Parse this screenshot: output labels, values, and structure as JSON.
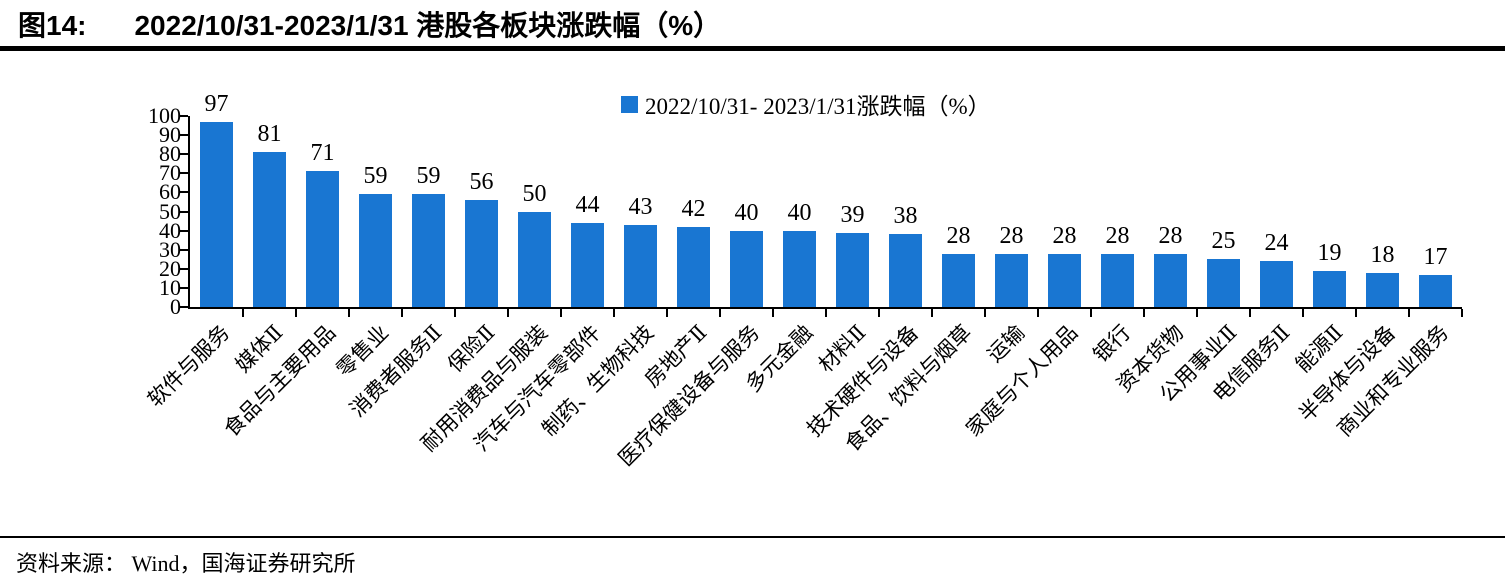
{
  "header": {
    "tag": "图14:",
    "title": "2022/10/31-2023/1/31 港股各板块涨跌幅（%）"
  },
  "legend": {
    "label": "2022/10/31- 2023/1/31涨跌幅（%）"
  },
  "footer": {
    "source_text": "资料来源： Wind，国海证券研究所"
  },
  "colors": {
    "bar": "#1976D2",
    "axis": "#000000",
    "text": "#000000"
  },
  "chart_data": {
    "type": "bar",
    "title": "2022/10/31-2023/1/31 港股各板块涨跌幅（%）",
    "categories": [
      "软件与服务",
      "媒体Ⅱ",
      "食品与主要用品",
      "零售业",
      "消费者服务Ⅱ",
      "保险Ⅱ",
      "耐用消费品与服装",
      "汽车与汽车零部件",
      "制药、生物科技",
      "房地产Ⅱ",
      "医疗保健设备与服务",
      "多元金融",
      "材料Ⅱ",
      "技术硬件与设备",
      "食品、饮料与烟草",
      "运输",
      "家庭与个人用品",
      "银行",
      "资本货物",
      "公用事业Ⅱ",
      "电信服务Ⅱ",
      "能源Ⅱ",
      "半导体与设备",
      "商业和专业服务"
    ],
    "series": [
      {
        "name": "2022/10/31- 2023/1/31涨跌幅（%）",
        "values": [
          97,
          81,
          71,
          59,
          59,
          56,
          50,
          44,
          43,
          42,
          40,
          40,
          39,
          38,
          28,
          28,
          28,
          28,
          28,
          25,
          24,
          19,
          18,
          17
        ]
      }
    ],
    "values": [
      97,
      81,
      71,
      59,
      59,
      56,
      50,
      44,
      43,
      42,
      40,
      40,
      39,
      38,
      28,
      28,
      28,
      28,
      28,
      25,
      24,
      19,
      18,
      17
    ],
    "xlabel": "",
    "ylabel": "",
    "ylim": [
      0,
      100
    ],
    "ytick_step": 10,
    "grid": false,
    "legend_position": "top-center",
    "bar_color": "#1976D2",
    "x_label_rotation": 45
  }
}
